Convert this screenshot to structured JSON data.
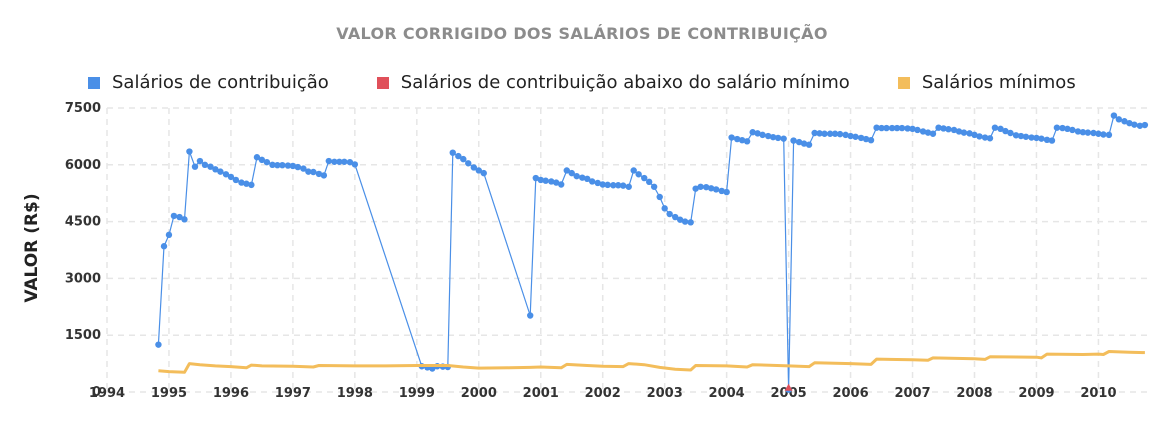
{
  "chart_data": {
    "type": "line",
    "title": "VALOR CORRIGIDO DOS SALÁRIOS DE CONTRIBUIÇÃO",
    "ylabel": "VALOR (R$)",
    "xlabel": "",
    "xlim": [
      1994.0,
      2010.8
    ],
    "ylim": [
      0,
      7500
    ],
    "x_ticks": [
      1994,
      1995,
      1996,
      1997,
      1998,
      1999,
      2000,
      2001,
      2002,
      2003,
      2004,
      2005,
      2006,
      2007,
      2008,
      2009,
      2010
    ],
    "y_ticks": [
      0,
      1500,
      3000,
      4500,
      6000,
      7500
    ],
    "grid": true,
    "legend_position": "top",
    "series": [
      {
        "name": "Salários de contribuição",
        "color": "#4a8fe7",
        "points": [
          [
            1994.83,
            1250
          ],
          [
            1994.92,
            3850
          ],
          [
            1995.0,
            4150
          ],
          [
            1995.08,
            4650
          ],
          [
            1995.17,
            4620
          ],
          [
            1995.25,
            4560
          ],
          [
            1995.33,
            6350
          ],
          [
            1995.42,
            5950
          ],
          [
            1995.5,
            6100
          ],
          [
            1995.58,
            6000
          ],
          [
            1995.67,
            5950
          ],
          [
            1995.75,
            5880
          ],
          [
            1995.83,
            5820
          ],
          [
            1995.92,
            5750
          ],
          [
            1996.0,
            5680
          ],
          [
            1996.08,
            5600
          ],
          [
            1996.17,
            5530
          ],
          [
            1996.25,
            5500
          ],
          [
            1996.33,
            5470
          ],
          [
            1996.42,
            6200
          ],
          [
            1996.5,
            6130
          ],
          [
            1996.58,
            6070
          ],
          [
            1996.67,
            6000
          ],
          [
            1996.75,
            5990
          ],
          [
            1996.83,
            5990
          ],
          [
            1996.92,
            5980
          ],
          [
            1997.0,
            5970
          ],
          [
            1997.08,
            5940
          ],
          [
            1997.17,
            5900
          ],
          [
            1997.25,
            5820
          ],
          [
            1997.33,
            5810
          ],
          [
            1997.42,
            5760
          ],
          [
            1997.5,
            5720
          ],
          [
            1997.58,
            6100
          ],
          [
            1997.67,
            6080
          ],
          [
            1997.75,
            6080
          ],
          [
            1997.83,
            6080
          ],
          [
            1997.92,
            6070
          ],
          [
            1998.0,
            6010
          ],
          [
            1999.08,
            680
          ],
          [
            1999.17,
            650
          ],
          [
            1999.25,
            620
          ],
          [
            1999.33,
            680
          ],
          [
            1999.42,
            670
          ],
          [
            1999.5,
            660
          ],
          [
            1999.58,
            6320
          ],
          [
            1999.67,
            6230
          ],
          [
            1999.75,
            6150
          ],
          [
            1999.83,
            6040
          ],
          [
            1999.92,
            5930
          ],
          [
            2000.0,
            5850
          ],
          [
            2000.08,
            5780
          ],
          [
            2000.83,
            2020
          ],
          [
            2000.92,
            5650
          ],
          [
            2001.0,
            5600
          ],
          [
            2001.08,
            5580
          ],
          [
            2001.17,
            5560
          ],
          [
            2001.25,
            5530
          ],
          [
            2001.33,
            5480
          ],
          [
            2001.42,
            5850
          ],
          [
            2001.5,
            5780
          ],
          [
            2001.58,
            5700
          ],
          [
            2001.67,
            5660
          ],
          [
            2001.75,
            5630
          ],
          [
            2001.83,
            5560
          ],
          [
            2001.92,
            5520
          ],
          [
            2002.0,
            5480
          ],
          [
            2002.08,
            5470
          ],
          [
            2002.17,
            5460
          ],
          [
            2002.25,
            5460
          ],
          [
            2002.33,
            5450
          ],
          [
            2002.42,
            5420
          ],
          [
            2002.5,
            5850
          ],
          [
            2002.58,
            5750
          ],
          [
            2002.67,
            5650
          ],
          [
            2002.75,
            5550
          ],
          [
            2002.83,
            5420
          ],
          [
            2002.92,
            5150
          ],
          [
            2003.0,
            4850
          ],
          [
            2003.08,
            4700
          ],
          [
            2003.17,
            4620
          ],
          [
            2003.25,
            4550
          ],
          [
            2003.33,
            4500
          ],
          [
            2003.42,
            4480
          ],
          [
            2003.5,
            5370
          ],
          [
            2003.58,
            5420
          ],
          [
            2003.67,
            5410
          ],
          [
            2003.75,
            5380
          ],
          [
            2003.83,
            5350
          ],
          [
            2003.92,
            5310
          ],
          [
            2004.0,
            5280
          ],
          [
            2004.08,
            6720
          ],
          [
            2004.17,
            6680
          ],
          [
            2004.25,
            6650
          ],
          [
            2004.33,
            6620
          ],
          [
            2004.42,
            6860
          ],
          [
            2004.5,
            6830
          ],
          [
            2004.58,
            6790
          ],
          [
            2004.67,
            6760
          ],
          [
            2004.75,
            6730
          ],
          [
            2004.83,
            6710
          ],
          [
            2004.92,
            6690
          ],
          [
            2005.0,
            60
          ],
          [
            2005.08,
            6640
          ],
          [
            2005.17,
            6600
          ],
          [
            2005.25,
            6560
          ],
          [
            2005.33,
            6530
          ],
          [
            2005.42,
            6840
          ],
          [
            2005.5,
            6830
          ],
          [
            2005.58,
            6820
          ],
          [
            2005.67,
            6820
          ],
          [
            2005.75,
            6820
          ],
          [
            2005.83,
            6810
          ],
          [
            2005.92,
            6790
          ],
          [
            2006.0,
            6760
          ],
          [
            2006.08,
            6740
          ],
          [
            2006.17,
            6710
          ],
          [
            2006.25,
            6680
          ],
          [
            2006.33,
            6650
          ],
          [
            2006.42,
            6980
          ],
          [
            2006.5,
            6970
          ],
          [
            2006.58,
            6970
          ],
          [
            2006.67,
            6970
          ],
          [
            2006.75,
            6970
          ],
          [
            2006.83,
            6970
          ],
          [
            2006.92,
            6960
          ],
          [
            2007.0,
            6950
          ],
          [
            2007.08,
            6920
          ],
          [
            2007.17,
            6880
          ],
          [
            2007.25,
            6850
          ],
          [
            2007.33,
            6820
          ],
          [
            2007.42,
            6980
          ],
          [
            2007.5,
            6960
          ],
          [
            2007.58,
            6940
          ],
          [
            2007.67,
            6920
          ],
          [
            2007.75,
            6880
          ],
          [
            2007.83,
            6850
          ],
          [
            2007.92,
            6830
          ],
          [
            2008.0,
            6790
          ],
          [
            2008.08,
            6750
          ],
          [
            2008.17,
            6720
          ],
          [
            2008.25,
            6700
          ],
          [
            2008.33,
            6980
          ],
          [
            2008.42,
            6950
          ],
          [
            2008.5,
            6890
          ],
          [
            2008.58,
            6840
          ],
          [
            2008.67,
            6780
          ],
          [
            2008.75,
            6760
          ],
          [
            2008.83,
            6740
          ],
          [
            2008.92,
            6720
          ],
          [
            2009.0,
            6710
          ],
          [
            2009.08,
            6690
          ],
          [
            2009.17,
            6660
          ],
          [
            2009.25,
            6640
          ],
          [
            2009.33,
            6980
          ],
          [
            2009.42,
            6970
          ],
          [
            2009.5,
            6950
          ],
          [
            2009.58,
            6920
          ],
          [
            2009.67,
            6880
          ],
          [
            2009.75,
            6860
          ],
          [
            2009.83,
            6850
          ],
          [
            2009.92,
            6840
          ],
          [
            2010.0,
            6820
          ],
          [
            2010.08,
            6800
          ],
          [
            2010.17,
            6790
          ],
          [
            2010.25,
            7300
          ],
          [
            2010.33,
            7200
          ],
          [
            2010.42,
            7150
          ],
          [
            2010.5,
            7100
          ],
          [
            2010.58,
            7060
          ],
          [
            2010.67,
            7030
          ],
          [
            2010.75,
            7050
          ]
        ]
      },
      {
        "name": "Salários de contribuição abaixo do salário mínimo",
        "color": "#e0505a",
        "points": [
          [
            2005.0,
            60
          ]
        ]
      },
      {
        "name": "Salários mínimos",
        "color": "#f3bd5b",
        "points": [
          [
            1994.83,
            560
          ],
          [
            1995.0,
            540
          ],
          [
            1995.25,
            520
          ],
          [
            1995.33,
            750
          ],
          [
            1995.5,
            720
          ],
          [
            1995.75,
            690
          ],
          [
            1996.0,
            670
          ],
          [
            1996.25,
            640
          ],
          [
            1996.33,
            710
          ],
          [
            1996.5,
            690
          ],
          [
            1997.0,
            680
          ],
          [
            1997.33,
            660
          ],
          [
            1997.42,
            700
          ],
          [
            1998.0,
            690
          ],
          [
            1998.5,
            690
          ],
          [
            1999.0,
            700
          ],
          [
            1999.5,
            700
          ],
          [
            1999.75,
            660
          ],
          [
            2000.0,
            630
          ],
          [
            2000.5,
            640
          ],
          [
            2000.83,
            650
          ],
          [
            2001.0,
            660
          ],
          [
            2001.33,
            640
          ],
          [
            2001.42,
            730
          ],
          [
            2001.75,
            700
          ],
          [
            2002.0,
            680
          ],
          [
            2002.33,
            670
          ],
          [
            2002.42,
            750
          ],
          [
            2002.67,
            720
          ],
          [
            2002.92,
            650
          ],
          [
            2003.17,
            600
          ],
          [
            2003.42,
            580
          ],
          [
            2003.5,
            700
          ],
          [
            2004.0,
            690
          ],
          [
            2004.33,
            660
          ],
          [
            2004.42,
            720
          ],
          [
            2005.0,
            690
          ],
          [
            2005.33,
            670
          ],
          [
            2005.42,
            770
          ],
          [
            2006.0,
            750
          ],
          [
            2006.33,
            730
          ],
          [
            2006.42,
            870
          ],
          [
            2007.0,
            850
          ],
          [
            2007.25,
            840
          ],
          [
            2007.33,
            900
          ],
          [
            2008.0,
            880
          ],
          [
            2008.17,
            860
          ],
          [
            2008.25,
            930
          ],
          [
            2009.0,
            920
          ],
          [
            2009.08,
            900
          ],
          [
            2009.17,
            1000
          ],
          [
            2009.75,
            990
          ],
          [
            2010.0,
            1000
          ],
          [
            2010.08,
            990
          ],
          [
            2010.17,
            1070
          ],
          [
            2010.5,
            1050
          ],
          [
            2010.75,
            1040
          ]
        ]
      }
    ]
  }
}
